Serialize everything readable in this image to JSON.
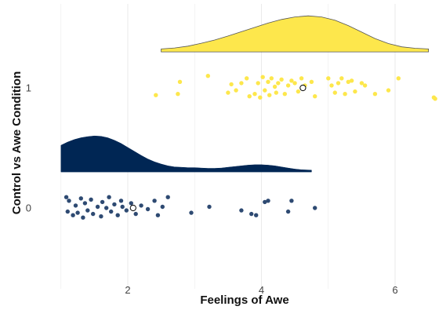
{
  "chart_data": {
    "type": "scatter",
    "subtype": "raincloud",
    "title": "",
    "xlabel": "Feelings of Awe",
    "ylabel": "Control vs Awe Condition",
    "xlim": [
      0.9,
      6.55
    ],
    "x_ticks": [
      2,
      4,
      6
    ],
    "y_ticks": [
      0,
      1
    ],
    "grid": "vertical major gridlines",
    "legend": "none",
    "colors": {
      "awe": "#FDE74C",
      "awe_point": "#FDE74C",
      "awe_outline": "#555555",
      "control": "#002654",
      "control_point": "#2E4A72",
      "grid": "#EBEBEB",
      "mean_marker": "#ffffff"
    },
    "series": [
      {
        "group": "1",
        "mean": 4.62,
        "density_range": [
          2.5,
          6.5
        ],
        "density": [
          [
            2.5,
            0.08
          ],
          [
            2.7,
            0.11
          ],
          [
            2.9,
            0.16
          ],
          [
            3.1,
            0.24
          ],
          [
            3.3,
            0.33
          ],
          [
            3.5,
            0.44
          ],
          [
            3.7,
            0.56
          ],
          [
            3.9,
            0.68
          ],
          [
            4.1,
            0.8
          ],
          [
            4.3,
            0.9
          ],
          [
            4.5,
            0.97
          ],
          [
            4.7,
            1.0
          ],
          [
            4.9,
            0.97
          ],
          [
            5.1,
            0.88
          ],
          [
            5.3,
            0.73
          ],
          [
            5.5,
            0.55
          ],
          [
            5.7,
            0.37
          ],
          [
            5.9,
            0.23
          ],
          [
            6.1,
            0.14
          ],
          [
            6.3,
            0.1
          ],
          [
            6.5,
            0.08
          ]
        ],
        "points": [
          [
            2.42,
            0.94
          ],
          [
            2.75,
            0.95
          ],
          [
            2.78,
            1.05
          ],
          [
            3.2,
            1.1
          ],
          [
            3.5,
            0.96
          ],
          [
            3.55,
            1.03
          ],
          [
            3.62,
            0.98
          ],
          [
            3.7,
            1.04
          ],
          [
            3.78,
            1.08
          ],
          [
            3.82,
            0.93
          ],
          [
            3.9,
            0.95
          ],
          [
            3.95,
            1.04
          ],
          [
            3.98,
            0.92
          ],
          [
            4.02,
            1.09
          ],
          [
            4.05,
            0.98
          ],
          [
            4.1,
            1.05
          ],
          [
            4.12,
            0.94
          ],
          [
            4.15,
            1.08
          ],
          [
            4.2,
            1.01
          ],
          [
            4.22,
            0.96
          ],
          [
            4.25,
            1.04
          ],
          [
            4.3,
            1.07
          ],
          [
            4.35,
            0.95
          ],
          [
            4.4,
            1.02
          ],
          [
            4.45,
            1.06
          ],
          [
            4.5,
            1.04
          ],
          [
            4.55,
            0.97
          ],
          [
            4.6,
            1.08
          ],
          [
            4.65,
            1.02
          ],
          [
            4.75,
            1.05
          ],
          [
            4.8,
            0.93
          ],
          [
            5.0,
            1.08
          ],
          [
            5.05,
            1.02
          ],
          [
            5.1,
            0.96
          ],
          [
            5.15,
            1.04
          ],
          [
            5.2,
            1.08
          ],
          [
            5.25,
            0.95
          ],
          [
            5.3,
            1.05
          ],
          [
            5.35,
            1.06
          ],
          [
            5.4,
            0.97
          ],
          [
            5.5,
            1.04
          ],
          [
            5.55,
            1.02
          ],
          [
            5.7,
            0.95
          ],
          [
            5.9,
            0.98
          ],
          [
            6.05,
            1.08
          ],
          [
            6.58,
            0.92
          ],
          [
            6.6,
            0.91
          ]
        ]
      },
      {
        "group": "0",
        "mean": 2.08,
        "density_range": [
          1.0,
          4.75
        ],
        "density": [
          [
            1.0,
            0.74
          ],
          [
            1.1,
            0.83
          ],
          [
            1.2,
            0.9
          ],
          [
            1.3,
            0.95
          ],
          [
            1.4,
            0.98
          ],
          [
            1.5,
            1.0
          ],
          [
            1.6,
            0.99
          ],
          [
            1.7,
            0.95
          ],
          [
            1.8,
            0.88
          ],
          [
            1.9,
            0.79
          ],
          [
            2.0,
            0.68
          ],
          [
            2.1,
            0.57
          ],
          [
            2.2,
            0.46
          ],
          [
            2.3,
            0.36
          ],
          [
            2.4,
            0.28
          ],
          [
            2.5,
            0.22
          ],
          [
            2.6,
            0.17
          ],
          [
            2.7,
            0.14
          ],
          [
            2.8,
            0.13
          ],
          [
            2.9,
            0.12
          ],
          [
            3.0,
            0.12
          ],
          [
            3.1,
            0.11
          ],
          [
            3.2,
            0.1
          ],
          [
            3.3,
            0.1
          ],
          [
            3.4,
            0.11
          ],
          [
            3.5,
            0.13
          ],
          [
            3.6,
            0.15
          ],
          [
            3.7,
            0.17
          ],
          [
            3.8,
            0.19
          ],
          [
            3.9,
            0.2
          ],
          [
            4.0,
            0.2
          ],
          [
            4.1,
            0.19
          ],
          [
            4.2,
            0.17
          ],
          [
            4.3,
            0.14
          ],
          [
            4.4,
            0.11
          ],
          [
            4.5,
            0.08
          ],
          [
            4.6,
            0.06
          ],
          [
            4.75,
            0.05
          ]
        ],
        "points": [
          [
            1.08,
            0.09
          ],
          [
            1.1,
            -0.03
          ],
          [
            1.12,
            0.06
          ],
          [
            1.18,
            -0.06
          ],
          [
            1.22,
            0.02
          ],
          [
            1.25,
            -0.04
          ],
          [
            1.3,
            0.08
          ],
          [
            1.33,
            -0.08
          ],
          [
            1.36,
            0.04
          ],
          [
            1.4,
            -0.02
          ],
          [
            1.45,
            0.07
          ],
          [
            1.48,
            -0.05
          ],
          [
            1.55,
            0.01
          ],
          [
            1.6,
            -0.07
          ],
          [
            1.62,
            0.05
          ],
          [
            1.68,
            0.0
          ],
          [
            1.72,
            0.09
          ],
          [
            1.75,
            -0.03
          ],
          [
            1.8,
            0.03
          ],
          [
            1.85,
            -0.06
          ],
          [
            1.9,
            0.06
          ],
          [
            1.92,
            0.01
          ],
          [
            1.98,
            -0.02
          ],
          [
            2.05,
            0.04
          ],
          [
            2.12,
            -0.05
          ],
          [
            2.2,
            0.02
          ],
          [
            2.3,
            -0.01
          ],
          [
            2.4,
            0.06
          ],
          [
            2.45,
            -0.06
          ],
          [
            2.52,
            0.01
          ],
          [
            2.6,
            0.09
          ],
          [
            2.95,
            -0.04
          ],
          [
            3.22,
            0.01
          ],
          [
            3.7,
            -0.02
          ],
          [
            3.85,
            -0.05
          ],
          [
            3.92,
            -0.06
          ],
          [
            4.05,
            0.05
          ],
          [
            4.1,
            0.06
          ],
          [
            4.4,
            -0.03
          ],
          [
            4.45,
            0.06
          ],
          [
            4.8,
            0.0
          ]
        ]
      }
    ]
  }
}
